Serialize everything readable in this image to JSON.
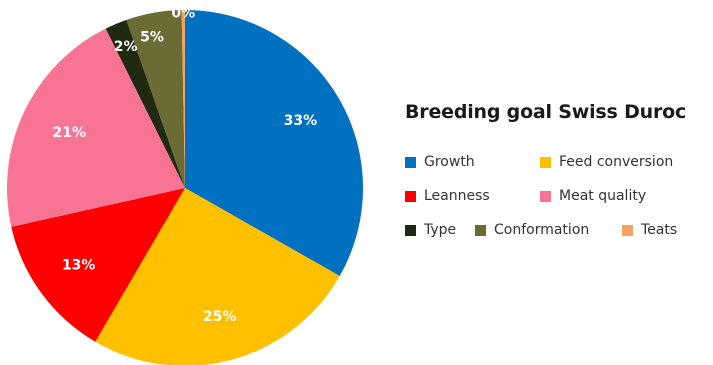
{
  "chart_data": {
    "type": "pie",
    "title": "Breeding goal Swiss Duroc",
    "legend_position": "right",
    "slices": [
      {
        "name": "Growth",
        "value": 33,
        "label": "33%",
        "color": "#0070C0"
      },
      {
        "name": "Feed conversion",
        "value": 25,
        "label": "25%",
        "color": "#FFC000"
      },
      {
        "name": "Leanness",
        "value": 13,
        "label": "13%",
        "color": "#FF0000"
      },
      {
        "name": "Meat quality",
        "value": 21,
        "label": "21%",
        "color": "#F87494"
      },
      {
        "name": "Type",
        "value": 2,
        "label": "2%",
        "color": "#1F2A10"
      },
      {
        "name": "Conformation",
        "value": 5,
        "label": "5%",
        "color": "#6B6B35"
      },
      {
        "name": "Teats",
        "value": 0.3,
        "label": "0%",
        "color": "#F4A460"
      }
    ]
  }
}
